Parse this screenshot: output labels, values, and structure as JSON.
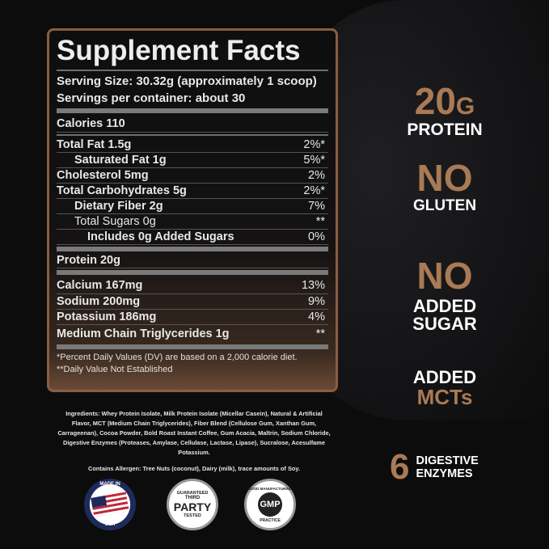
{
  "facts": {
    "title": "Supplement Facts",
    "serving_size": "Serving Size: 30.32g (approximately 1 scoop)",
    "servings_per_container": "Servings per container: about 30",
    "calories": "Calories 110",
    "rows": [
      {
        "label": "Total Fat 1.5g",
        "dv": "2%*"
      },
      {
        "label": "Saturated Fat 1g",
        "dv": "5%*"
      },
      {
        "label": "Cholesterol 5mg",
        "dv": "2%"
      },
      {
        "label": "Total Carbohydrates 5g",
        "dv": "2%*"
      },
      {
        "label": "Dietary Fiber 2g",
        "dv": "7%"
      },
      {
        "label": "Total Sugars 0g",
        "dv": "**"
      },
      {
        "label": "Includes 0g Added Sugars",
        "dv": "0%"
      },
      {
        "label": "Protein 20g",
        "dv": ""
      },
      {
        "label": "Calcium 167mg",
        "dv": "13%"
      },
      {
        "label": "Sodium 200mg",
        "dv": "9%"
      },
      {
        "label": "Potassium 186mg",
        "dv": "4%"
      },
      {
        "label": "Medium Chain Triglycerides 1g",
        "dv": "**"
      }
    ],
    "footnote1": "*Percent Daily Values (DV) are based on a 2,000 calorie diet.",
    "footnote2": "**Daily Value Not Established"
  },
  "ingredients": "Ingredients: Whey Protein Isolate, Milk Protein Isolate (Micellar Casein), Natural & Artificial Flavor, MCT (Medium Chain Triglycerides), Fiber Blend (Cellulose Gum, Xanthan Gum, Carrageenan), Cocoa Powder, Bold Roast Instant Coffee, Gum Acacia, Maltrin, Sodium Chloride, Digestive Enzymes (Proteases, Amylase, Cellulase, Lactase, Lipase), Sucralose, Acesulfame Potassium.",
  "allergen": "Contains Allergen: Tree Nuts (coconut), Dairy (milk), trace amounts of Soy.",
  "claims": {
    "protein_num": "20",
    "protein_unit": "G",
    "protein_label": "PROTEIN",
    "gluten_no": "NO",
    "gluten_label": "GLUTEN",
    "sugar_no": "NO",
    "sugar_label1": "ADDED",
    "sugar_label2": "SUGAR",
    "mct_label1": "ADDED",
    "mct_label2": "MCTs",
    "enzymes_num": "6",
    "enzymes_label1": "DIGESTIVE",
    "enzymes_label2": "ENZYMES"
  },
  "badges": {
    "usa": {
      "top": "MADE IN",
      "bottom": "USA"
    },
    "third_party": {
      "top": "GUARANTEED",
      "mid1": "THIRD",
      "mid2": "PARTY",
      "bottom": "TESTED"
    },
    "gmp": {
      "top": "GOOD MANUFACTURING",
      "mid": "GMP",
      "bottom": "PRACTICE"
    }
  },
  "colors": {
    "accent": "#a97a55",
    "background": "#0c0c0d"
  }
}
